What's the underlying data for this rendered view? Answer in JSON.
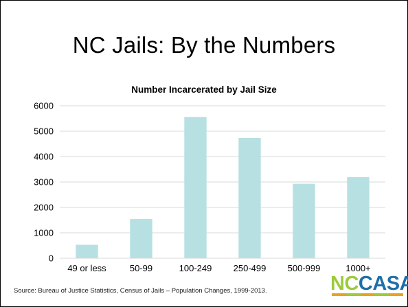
{
  "slide": {
    "title": "NC Jails: By the Numbers",
    "source": "Source: Bureau  of Justice Statistics, Census of Jails – Population Changes, 1999-2013.",
    "logo": {
      "part1": "NC",
      "part2": "CASA",
      "strip_colors": [
        "#e8a321",
        "#9ccb3b",
        "#e8a321",
        "#9ccb3b",
        "#e8a321"
      ]
    }
  },
  "chart_data": {
    "type": "bar",
    "title": "Number Incarcerated by Jail Size",
    "xlabel": "",
    "ylabel": "",
    "categories": [
      "49 or less",
      "50-99",
      "100-249",
      "250-499",
      "500-999",
      "1000+"
    ],
    "values": [
      530,
      1540,
      5560,
      4730,
      2930,
      3190
    ],
    "ylim": [
      0,
      6000
    ],
    "yticks": [
      0,
      1000,
      2000,
      3000,
      4000,
      5000,
      6000
    ],
    "grid": true,
    "legend": "none",
    "bar_color": "#b7e0e2",
    "grid_color": "#d9d9d9"
  }
}
